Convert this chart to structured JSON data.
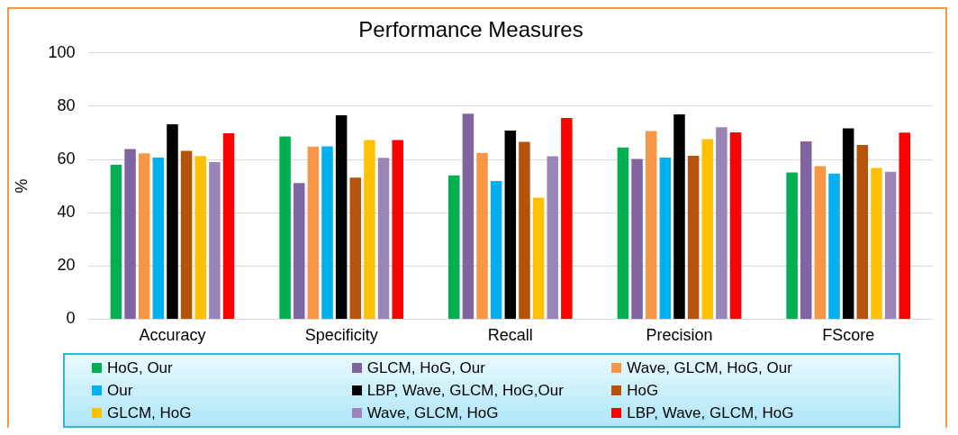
{
  "chart_data": {
    "type": "bar",
    "title": "Performance Measures",
    "ylabel": "%",
    "categories": [
      "Accuracy",
      "Specificity",
      "Recall",
      "Precision",
      "FScore"
    ],
    "series": [
      {
        "name": "HoG, Our",
        "color": "#00b050",
        "values": [
          58.0,
          68.6,
          54.0,
          64.5,
          55.1
        ]
      },
      {
        "name": "GLCM, HoG, Our",
        "color": "#8064a2",
        "values": [
          63.9,
          51.1,
          77.2,
          60.2,
          66.8
        ]
      },
      {
        "name": "Wave, GLCM, HoG, Our",
        "color": "#f79646",
        "values": [
          62.3,
          64.8,
          62.5,
          70.7,
          57.5
        ]
      },
      {
        "name": "Our",
        "color": "#00b0f0",
        "values": [
          60.7,
          64.9,
          51.9,
          60.7,
          54.7
        ]
      },
      {
        "name": "LBP, Wave, GLCM, HoG,Our",
        "color": "#000000",
        "values": [
          73.2,
          76.6,
          70.8,
          76.9,
          71.7
        ]
      },
      {
        "name": "HoG",
        "color": "#b45309",
        "values": [
          63.2,
          53.2,
          66.6,
          61.4,
          65.4
        ]
      },
      {
        "name": "GLCM, HoG",
        "color": "#ffc000",
        "values": [
          61.3,
          67.3,
          45.6,
          67.6,
          56.8
        ]
      },
      {
        "name": "Wave, GLCM, HoG",
        "color": "#9b85b8",
        "values": [
          59.0,
          60.6,
          61.2,
          72.1,
          55.4
        ]
      },
      {
        "name": "LBP, Wave, GLCM, HoG",
        "color": "#ff0000",
        "values": [
          69.8,
          67.3,
          75.6,
          70.2,
          70.1
        ]
      }
    ],
    "ylim": [
      0,
      100
    ],
    "yticks": [
      0,
      20,
      40,
      60,
      80,
      100
    ],
    "grid": "y",
    "legend": "bottom"
  }
}
